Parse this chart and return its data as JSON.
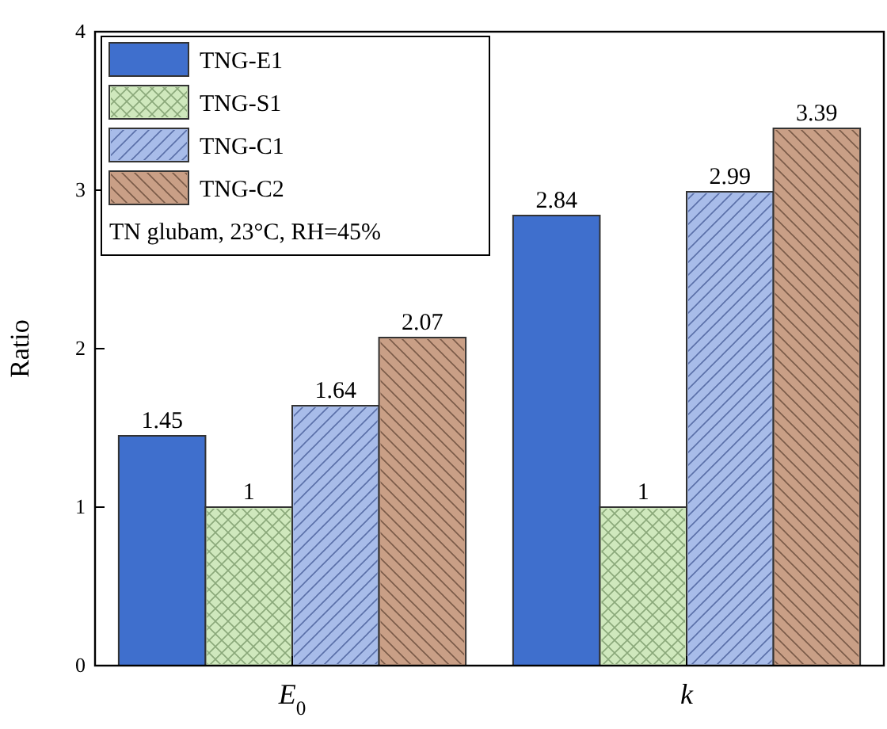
{
  "chart_data": {
    "type": "bar",
    "ylabel": "Ratio",
    "categories": [
      "E$_{0}$",
      "k"
    ],
    "series": [
      {
        "name": "TNG-E1",
        "color": "#3f6fcd",
        "values": [
          1.45,
          2.84
        ]
      },
      {
        "name": "TNG-S1",
        "color": "#cfe8bd",
        "values": [
          1,
          1
        ]
      },
      {
        "name": "TNG-C1",
        "color": "#a8bce9",
        "values": [
          1.64,
          2.99
        ]
      },
      {
        "name": "TNG-C2",
        "color": "#c99f86",
        "values": [
          2.07,
          3.39
        ]
      }
    ],
    "ylim": [
      0,
      4
    ],
    "yticks": [
      0,
      1,
      2,
      3,
      4
    ],
    "data_labels": true,
    "legend": "top left",
    "grid": false,
    "annotations": [
      "TN glubam, 23°C, RH=45%"
    ]
  }
}
